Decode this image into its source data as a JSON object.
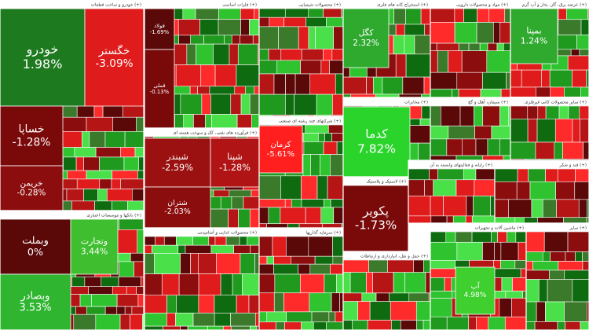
{
  "chart_data": {
    "type": "treemap",
    "sectors": [
      {
        "title": "خودرو و ساخت قطعات (+)",
        "tiles": [
          {
            "label": "خودرو",
            "value": 1.98,
            "value_label": "1.98%",
            "color": "#1e7a1e"
          },
          {
            "label": "خگستر",
            "value": -3.09,
            "value_label": "-3.09%",
            "color": "#e01b1b"
          },
          {
            "label": "خساپا",
            "value": -1.28,
            "value_label": "-1.28%",
            "color": "#7a0a0a"
          },
          {
            "label": "خریمن",
            "value": -0.28,
            "value_label": "-0.28%",
            "color": "#8b0d0d"
          }
        ]
      },
      {
        "title": "بانکها و موسسات اعتباری (+)",
        "tiles": [
          {
            "label": "وبملت",
            "value": 0,
            "value_label": "0%",
            "color": "#5a0808"
          },
          {
            "label": "وتجارت",
            "value": 3.44,
            "value_label": "3.44%",
            "color": "#3fbf2f"
          },
          {
            "label": "وبصادر",
            "value": 3.53,
            "value_label": "3.53%",
            "color": "#2fb52f"
          }
        ]
      },
      {
        "title": "فلزات اساسی (+)",
        "tiles": [
          {
            "label": "فولاد",
            "value": -1.69,
            "value_label": "-1.69%",
            "color": "#5a0808"
          },
          {
            "label": "فملی",
            "value": -0.13,
            "value_label": "-0.13%",
            "color": "#7a0a0a"
          }
        ]
      },
      {
        "title": "محصولات شیمیایی (+)",
        "tiles": []
      },
      {
        "title": "استخراج کانه های فلزی (+)",
        "tiles": [
          {
            "label": "کگل",
            "value": 2.32,
            "value_label": "2.32%",
            "color": "#2faa2f"
          }
        ]
      },
      {
        "title": "مواد و محصولات دارویی (+)",
        "tiles": []
      },
      {
        "title": "عرضه برق، گاز، بخار و آب گرم (+)",
        "tiles": [
          {
            "label": "بمپنا",
            "value": 1.24,
            "value_label": "1.24%",
            "color": "#2faa2f"
          }
        ]
      },
      {
        "title": "فرآورده های نفتی، کک و سوخت هسته ای (+)",
        "tiles": [
          {
            "label": "شبندر",
            "value": -2.59,
            "value_label": "-2.59%",
            "color": "#9b1010"
          },
          {
            "label": "شپنا",
            "value": -1.28,
            "value_label": "-1.28%",
            "color": "#b01414"
          },
          {
            "label": "شتران",
            "value": -2.03,
            "value_label": "-2.03%",
            "color": "#8b0d0d"
          }
        ]
      },
      {
        "title": "شرکتهای چند رشته ای صنعتی (+)",
        "tiles": [
          {
            "label": "کرمان",
            "value": -5.61,
            "value_label": "-5.61%",
            "color": "#ff1f1f"
          }
        ]
      },
      {
        "title": "مخابرات (+)",
        "tiles": [
          {
            "label": "کدما",
            "value": 7.82,
            "value_label": "7.82%",
            "color": "#2ad42a"
          }
        ]
      },
      {
        "title": "سیمان، آهک و گچ (+)",
        "tiles": []
      },
      {
        "title": "سایر محصولات کانی غیرفلزی (+)",
        "tiles": []
      },
      {
        "title": "محصولات غذایی و آشامیدنی (+)",
        "tiles": []
      },
      {
        "title": "سرمایه گذاریها (+)",
        "tiles": []
      },
      {
        "title": "لاستیک و پلاستیک (+)",
        "tiles": [
          {
            "label": "پکویر",
            "value": -1.73,
            "value_label": "-1.73%",
            "color": "#7a0a0a"
          }
        ]
      },
      {
        "title": "حمل و نقل، انبارداری و ارتباطات (+)",
        "tiles": []
      },
      {
        "title": "رایانه و فعالیتهای وابسته به آن (+)",
        "tiles": []
      },
      {
        "title": "ماشین آلات و تجهیزات (+)",
        "tiles": [
          {
            "label": "آپ",
            "value": 4.98,
            "value_label": "4.98%",
            "color": "#3fcf2f"
          }
        ]
      },
      {
        "title": "قند و شکر (+)",
        "tiles": []
      },
      {
        "title": "سایر (+)",
        "tiles": []
      }
    ]
  }
}
